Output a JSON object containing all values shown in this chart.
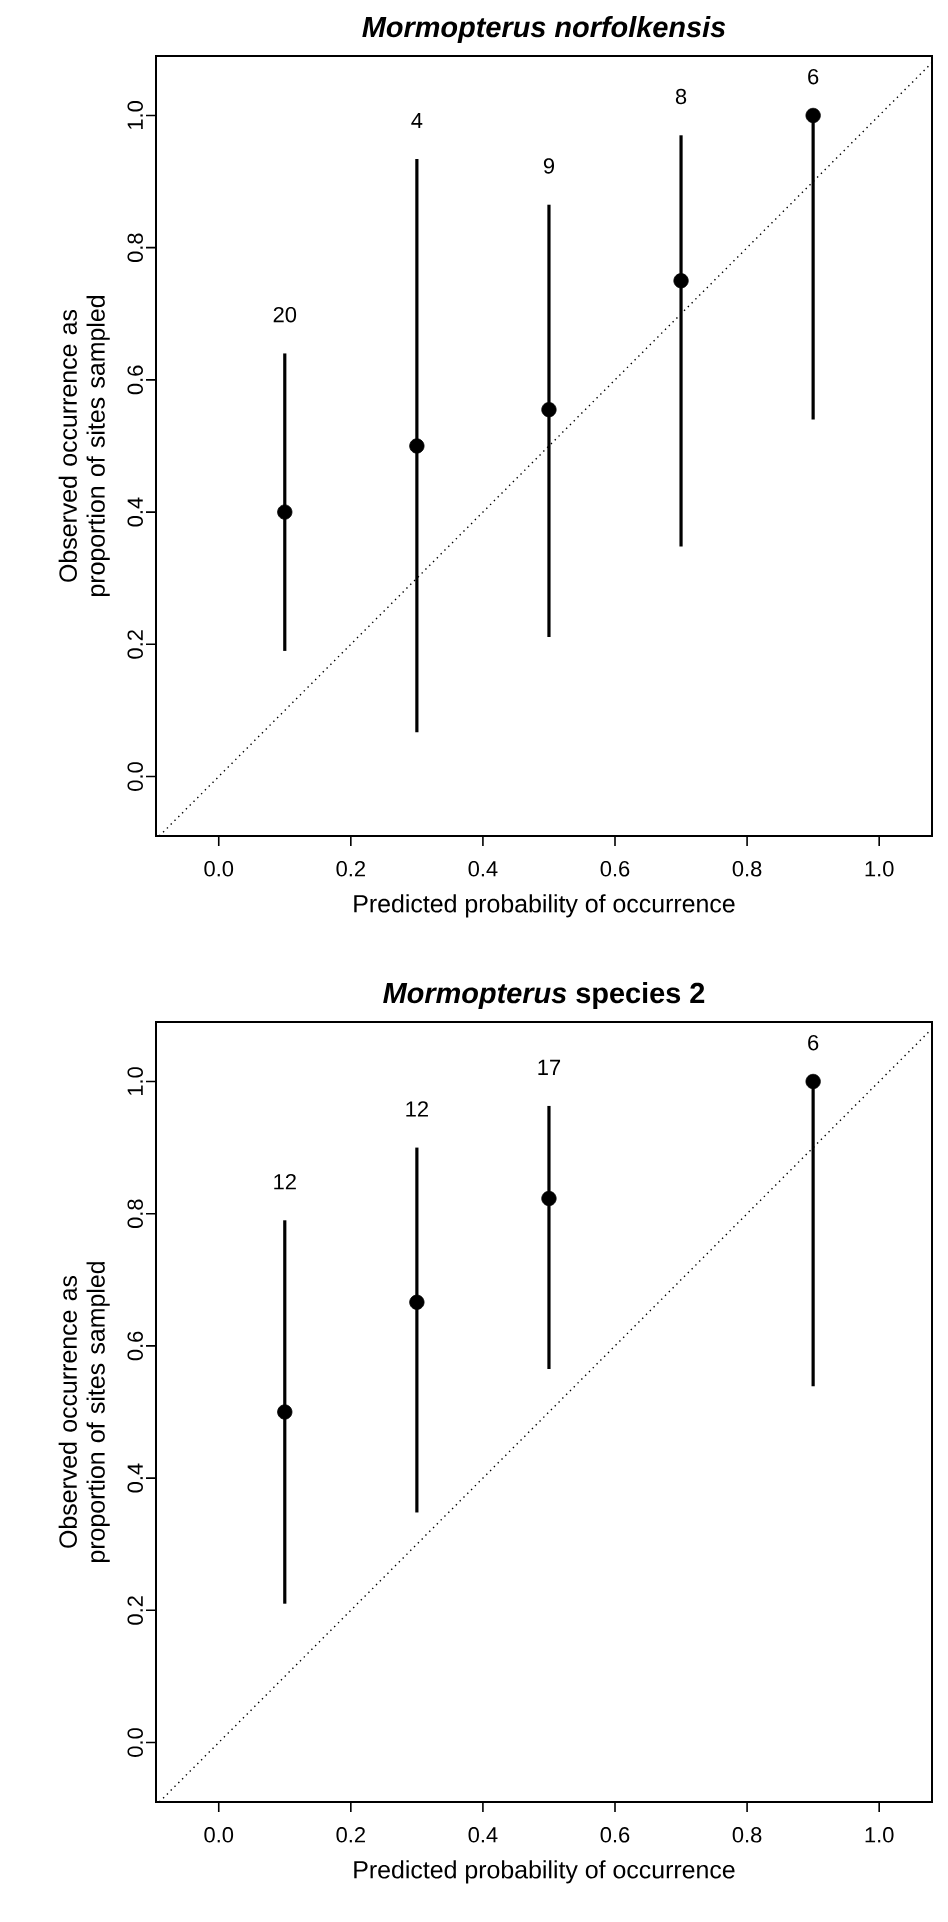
{
  "chart_data": [
    {
      "type": "scatter",
      "title": "Mormopterus norfolkensis",
      "xlabel": "Predicted probability of occurrence",
      "ylabel": "Observed occurrence as proportion of sites sampled",
      "xlim": [
        -0.095,
        1.08
      ],
      "ylim": [
        -0.09,
        1.09
      ],
      "xticks": [
        {
          "value": 0,
          "label": "0.0"
        },
        {
          "value": 0.2,
          "label": "0.2"
        },
        {
          "value": 0.4,
          "label": "0.4"
        },
        {
          "value": 0.6,
          "label": "0.6"
        },
        {
          "value": 0.8,
          "label": "0.8"
        },
        {
          "value": 1,
          "label": "1.0"
        }
      ],
      "yticks": [
        {
          "value": 0,
          "label": "0.0"
        },
        {
          "value": 0.2,
          "label": "0.2"
        },
        {
          "value": 0.4,
          "label": "0.4"
        },
        {
          "value": 0.6,
          "label": "0.6"
        },
        {
          "value": 0.8,
          "label": "0.8"
        },
        {
          "value": 1,
          "label": "1.0"
        }
      ],
      "series": [
        {
          "x": [
            0.1,
            0.3,
            0.5,
            0.7,
            0.9
          ],
          "values": [
            0.4,
            0.5,
            0.555,
            0.75,
            1.0
          ],
          "errors": [
            [
              0.19,
              0.64
            ],
            [
              0.067,
              0.934
            ],
            [
              0.211,
              0.865
            ],
            [
              0.348,
              0.97
            ],
            [
              0.54,
              1.0
            ]
          ],
          "color": "#000000",
          "marker": "circle"
        },
        {
          "type": "line",
          "x": [
            -0.09,
            1.08
          ],
          "values": [
            -0.09,
            1.08
          ],
          "color": "#000000",
          "line_style": "dotted",
          "marker": "none"
        }
      ],
      "annotations": [
        "20",
        "4",
        "9",
        "8",
        "6"
      ]
    },
    {
      "type": "scatter",
      "title": "*Mormopterus* species 2",
      "xlabel": "Predicted probability of occurrence",
      "ylabel": "Observed occurrence as proportion of sites sampled",
      "xlim": [
        -0.095,
        1.08
      ],
      "ylim": [
        -0.09,
        1.09
      ],
      "xticks": [
        {
          "value": 0,
          "label": "0.0"
        },
        {
          "value": 0.2,
          "label": "0.2"
        },
        {
          "value": 0.4,
          "label": "0.4"
        },
        {
          "value": 0.6,
          "label": "0.6"
        },
        {
          "value": 0.8,
          "label": "0.8"
        },
        {
          "value": 1,
          "label": "1.0"
        }
      ],
      "yticks": [
        {
          "value": 0,
          "label": "0.0"
        },
        {
          "value": 0.2,
          "label": "0.2"
        },
        {
          "value": 0.4,
          "label": "0.4"
        },
        {
          "value": 0.6,
          "label": "0.6"
        },
        {
          "value": 0.8,
          "label": "0.8"
        },
        {
          "value": 1,
          "label": "1.0"
        }
      ],
      "series": [
        {
          "x": [
            0.1,
            0.3,
            0.5,
            0.9
          ],
          "values": [
            0.5,
            0.666,
            0.823,
            1.0
          ],
          "errors": [
            [
              0.21,
              0.79
            ],
            [
              0.348,
              0.9
            ],
            [
              0.565,
              0.963
            ],
            [
              0.539,
              1.0
            ]
          ],
          "color": "#000000",
          "marker": "circle"
        },
        {
          "type": "line",
          "x": [
            -0.09,
            1.08
          ],
          "values": [
            -0.09,
            1.08
          ],
          "color": "#000000",
          "line_style": "dotted",
          "marker": "none"
        }
      ],
      "annotations": [
        "12",
        "12",
        "17",
        "6"
      ]
    }
  ]
}
